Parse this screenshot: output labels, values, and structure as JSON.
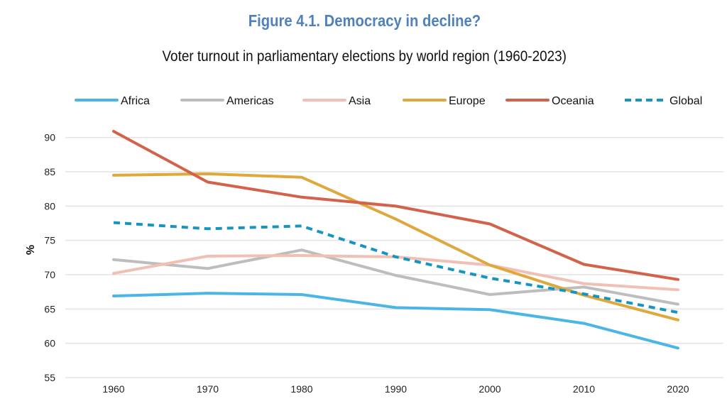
{
  "chart_data": {
    "type": "line",
    "title": "Figure 4.1. Democracy in decline?",
    "subtitle": "Voter turnout in parliamentary elections by world region (1960-2023)",
    "xlabel": "",
    "ylabel": "%",
    "x": [
      "1960",
      "1970",
      "1980",
      "1990",
      "2000",
      "2010",
      "2020"
    ],
    "ylim": [
      55,
      90
    ],
    "yticks": [
      55,
      60,
      65,
      70,
      75,
      80,
      85,
      90
    ],
    "grid": true,
    "legend_position": "top",
    "series": [
      {
        "name": "Africa",
        "color": "#4bb6e6",
        "dashed": false,
        "values": [
          66.9,
          67.3,
          67.1,
          65.2,
          64.9,
          62.9,
          59.3
        ]
      },
      {
        "name": "Americas",
        "color": "#bdbdbd",
        "dashed": false,
        "values": [
          72.2,
          70.9,
          73.6,
          69.9,
          67.1,
          68.2,
          65.7
        ]
      },
      {
        "name": "Asia",
        "color": "#f0c0b4",
        "dashed": false,
        "values": [
          70.2,
          72.7,
          72.8,
          72.6,
          71.4,
          68.7,
          67.8
        ]
      },
      {
        "name": "Europe",
        "color": "#dea83c",
        "dashed": false,
        "values": [
          84.5,
          84.7,
          84.2,
          78.1,
          71.4,
          67.0,
          63.4
        ]
      },
      {
        "name": "Oceania",
        "color": "#d2634a",
        "dashed": false,
        "values": [
          90.9,
          83.5,
          81.3,
          80.0,
          77.4,
          71.5,
          69.3
        ]
      },
      {
        "name": "Global",
        "color": "#1595bf",
        "dashed": true,
        "values": [
          77.6,
          76.7,
          77.1,
          72.6,
          69.5,
          67.2,
          64.5
        ]
      }
    ]
  }
}
